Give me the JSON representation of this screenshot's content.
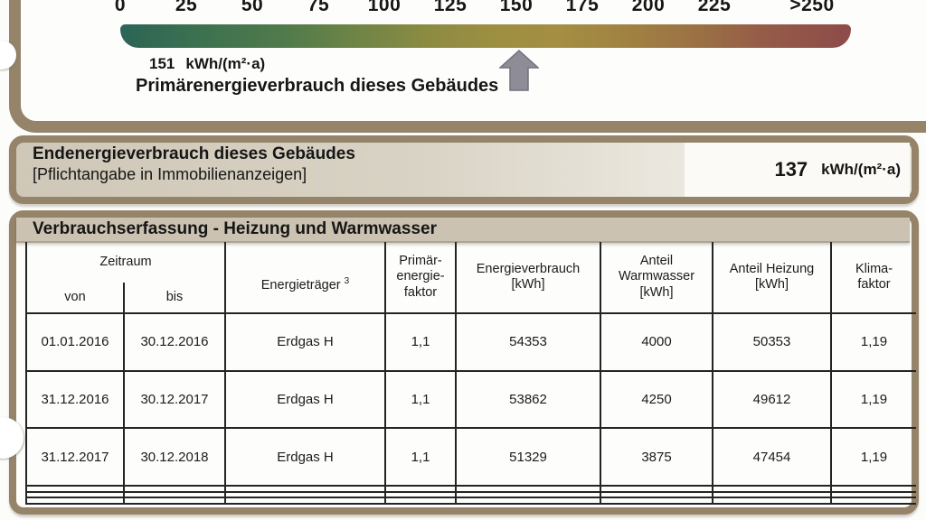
{
  "scale": {
    "ticks": [
      "0",
      "25",
      "50",
      "75",
      "100",
      "125",
      "150",
      "175",
      "200",
      "225",
      ">250"
    ],
    "value": "151",
    "unit": "kWh/(m²·a)",
    "caption": "Primärenergieverbrauch dieses Gebäudes",
    "arrow_position_kwh": 151,
    "axis_range": [
      0,
      250
    ],
    "gradient_colors": [
      "#2c6456",
      "#4f7a4b",
      "#8c8b42",
      "#a48e42",
      "#9b7144",
      "#8e4b4a"
    ]
  },
  "endenergie": {
    "title": "Endenergieverbrauch dieses Gebäudes",
    "subtitle": "[Pflichtangabe in Immobilienanzeigen]",
    "value": "137",
    "unit": "kWh/(m²·a)"
  },
  "table": {
    "title": "Verbrauchserfassung - Heizung und Warmwasser",
    "headers": {
      "zeitraum": "Zeitraum",
      "von": "von",
      "bis": "bis",
      "energietraeger": "Energieträger",
      "energietraeger_sup": "3",
      "primaerfaktor": "Primär-\nenergie-\nfaktor",
      "energieverbrauch": "Energieverbrauch\n[kWh]",
      "anteil_warmwasser": "Anteil\nWarmwasser\n[kWh]",
      "anteil_heizung": "Anteil Heizung\n[kWh]",
      "klimafaktor": "Klima-\nfaktor"
    },
    "rows": [
      [
        "01.01.2016",
        "30.12.2016",
        "Erdgas H",
        "1,1",
        "54353",
        "4000",
        "50353",
        "1,19"
      ],
      [
        "31.12.2016",
        "30.12.2017",
        "Erdgas H",
        "1,1",
        "53862",
        "4250",
        "49612",
        "1,19"
      ],
      [
        "31.12.2017",
        "30.12.2018",
        "Erdgas H",
        "1,1",
        "51329",
        "3875",
        "47454",
        "1,19"
      ],
      [
        "",
        "",
        "",
        "",
        "",
        "",
        "",
        ""
      ],
      [
        "",
        "",
        "",
        "",
        "",
        "",
        "",
        ""
      ],
      [
        "",
        "",
        "",
        "",
        "",
        "",
        "",
        ""
      ]
    ]
  },
  "colors": {
    "panel_border": "#95846a",
    "band_background": "#cbc2b1",
    "arrow_gray": "#8e8c96",
    "table_line": "#242424"
  }
}
